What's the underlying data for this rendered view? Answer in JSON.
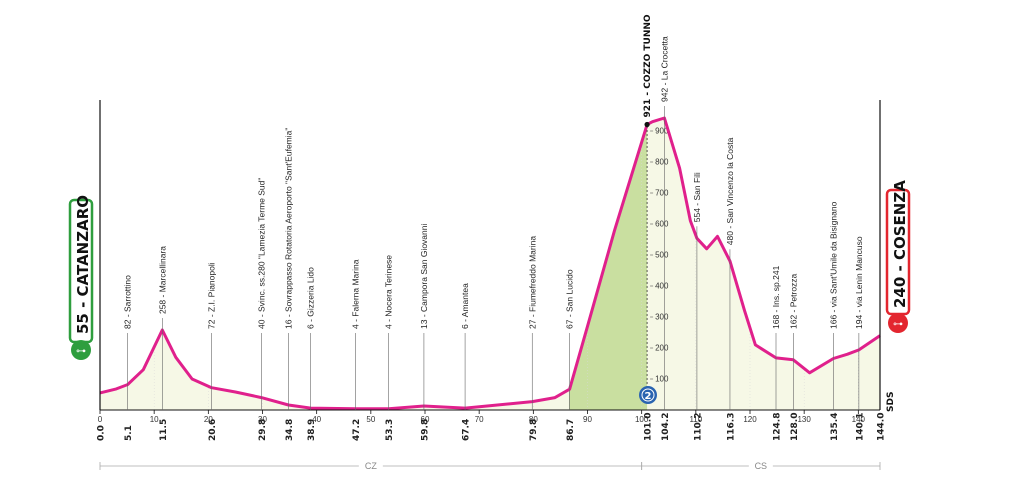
{
  "chart_data": {
    "type": "area",
    "title": "",
    "xlabel": "",
    "ylabel": "",
    "xlim": [
      0,
      144
    ],
    "ylim": [
      0,
      1000
    ],
    "x_ticks": [
      0,
      10,
      20,
      30,
      40,
      50,
      60,
      70,
      80,
      90,
      100,
      110,
      120,
      130,
      140
    ],
    "y_ticks": [
      100,
      200,
      300,
      400,
      500,
      600,
      700,
      800,
      900
    ],
    "profile": [
      {
        "x": 0,
        "y": 55
      },
      {
        "x": 3,
        "y": 68
      },
      {
        "x": 5.1,
        "y": 82
      },
      {
        "x": 8,
        "y": 130
      },
      {
        "x": 11.5,
        "y": 258
      },
      {
        "x": 14,
        "y": 170
      },
      {
        "x": 17,
        "y": 100
      },
      {
        "x": 20.6,
        "y": 72
      },
      {
        "x": 25,
        "y": 58
      },
      {
        "x": 29.8,
        "y": 40
      },
      {
        "x": 34.8,
        "y": 16
      },
      {
        "x": 38.9,
        "y": 6
      },
      {
        "x": 47.2,
        "y": 4
      },
      {
        "x": 53.3,
        "y": 4
      },
      {
        "x": 59.8,
        "y": 13
      },
      {
        "x": 67.4,
        "y": 6
      },
      {
        "x": 79.8,
        "y": 27
      },
      {
        "x": 84,
        "y": 40
      },
      {
        "x": 86.7,
        "y": 67
      },
      {
        "x": 90,
        "y": 270
      },
      {
        "x": 95,
        "y": 580
      },
      {
        "x": 101.0,
        "y": 921
      },
      {
        "x": 102,
        "y": 930
      },
      {
        "x": 104.2,
        "y": 942
      },
      {
        "x": 107,
        "y": 780
      },
      {
        "x": 109,
        "y": 610
      },
      {
        "x": 110.2,
        "y": 554
      },
      {
        "x": 112,
        "y": 520
      },
      {
        "x": 114,
        "y": 560
      },
      {
        "x": 116.3,
        "y": 480
      },
      {
        "x": 119,
        "y": 320
      },
      {
        "x": 121,
        "y": 210
      },
      {
        "x": 124.8,
        "y": 168
      },
      {
        "x": 128.0,
        "y": 162
      },
      {
        "x": 131,
        "y": 120
      },
      {
        "x": 135.4,
        "y": 166
      },
      {
        "x": 138,
        "y": 180
      },
      {
        "x": 140.1,
        "y": 194
      },
      {
        "x": 144.0,
        "y": 240
      }
    ],
    "climb": {
      "start_km": 86.7,
      "end_km": 101.0
    },
    "waypoints": [
      {
        "label": "82 - Sarrottino",
        "km": 5.1,
        "km_label": "5.1"
      },
      {
        "label": "258 - Marcellinara",
        "km": 11.5,
        "km_label": "11.5"
      },
      {
        "label": "72 - Z.I. Pianopoli",
        "km": 20.6,
        "km_label": "20.6"
      },
      {
        "label": "40 - Svinc. ss.280 \"Lamezia Terme Sud\"",
        "km": 29.8,
        "km_label": "29.8"
      },
      {
        "label": "16 - Sovrappasso Rotatoria Aeroporto \"Sant'Eufemia\"",
        "km": 34.8,
        "km_label": "34.8"
      },
      {
        "label": "6 - Gizzeria Lido",
        "km": 38.9,
        "km_label": "38.9"
      },
      {
        "label": "4 - Falerna Marina",
        "km": 47.2,
        "km_label": "47.2"
      },
      {
        "label": "4 - Nocera Terinese",
        "km": 53.3,
        "km_label": "53.3"
      },
      {
        "label": "13 - Campora San Giovanni",
        "km": 59.8,
        "km_label": "59.8"
      },
      {
        "label": "6 - Amantea",
        "km": 67.4,
        "km_label": "67.4"
      },
      {
        "label": "27 - Fiumefreddo Marina",
        "km": 79.8,
        "km_label": "79.8"
      },
      {
        "label": "67 - San Lucido",
        "km": 86.7,
        "km_label": "86.7"
      },
      {
        "label": "921 - COZZO TUNNO",
        "km": 101.0,
        "km_label": "101.0",
        "bold": true
      },
      {
        "label": "942 - La Crocetta",
        "km": 104.2,
        "km_label": "104.2"
      },
      {
        "label": "554 - San Fili",
        "km": 110.2,
        "km_label": "110.2"
      },
      {
        "label": "480 - San Vincenzo la Costa",
        "km": 116.3,
        "km_label": "116.3"
      },
      {
        "label": "168 - Ins. sp.241",
        "km": 124.8,
        "km_label": "124.8"
      },
      {
        "label": "162 - Petrozza",
        "km": 128.0,
        "km_label": "128.0"
      },
      {
        "label": "166 - via Sant'Umile da Bisignano",
        "km": 135.4,
        "km_label": "135.4"
      },
      {
        "label": "194 - via Lenin Mancuso",
        "km": 140.1,
        "km_label": "140.1"
      }
    ],
    "start": {
      "label": "55 - CATANZARO",
      "km_label": "0.0",
      "color": "#2e9e3e"
    },
    "finish": {
      "label": "240 - COSENZA",
      "km_label": "144.0",
      "color": "#e3262f"
    },
    "gpm_badge": "2",
    "sds_label": "SDS",
    "regions": [
      {
        "label": "CZ",
        "from": 0,
        "to": 100
      },
      {
        "label": "CS",
        "from": 100,
        "to": 144
      }
    ],
    "colors": {
      "line": "#e0208c",
      "fill_flat": "#f6f8e6",
      "fill_climb": "#c9dfa0",
      "badge": "#2a64b0"
    }
  }
}
